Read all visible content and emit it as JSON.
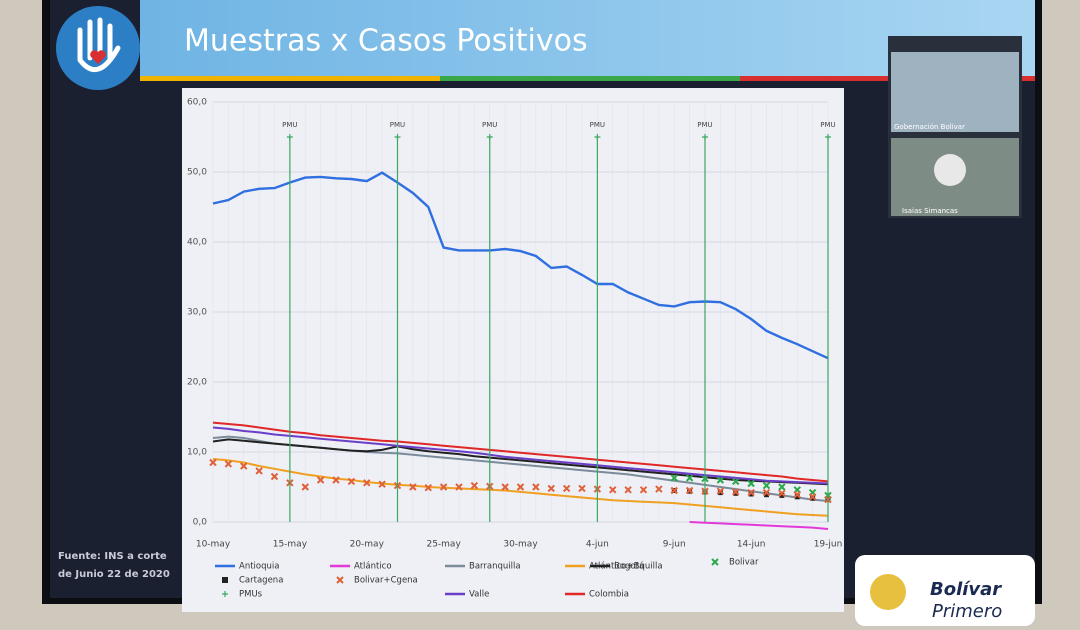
{
  "slide": {
    "title": "Muestras x Casos Positivos",
    "source_lines": [
      "Fuente: INS a corte",
      "de Junio 22 de 2020"
    ],
    "logo_lines": [
      "Bolívar",
      "Primero"
    ]
  },
  "video": {
    "participants": [
      "Gobernación Bolivar",
      "Isaias Simancas"
    ]
  },
  "chart_data": {
    "type": "line",
    "annotation_label": "PMU",
    "categories": [
      "10-may",
      null,
      null,
      null,
      null,
      "15-may",
      null,
      null,
      null,
      null,
      "20-may",
      null,
      null,
      null,
      null,
      "25-may",
      null,
      null,
      null,
      null,
      "30-may",
      null,
      null,
      null,
      null,
      "4-jun",
      null,
      null,
      null,
      null,
      "9-jun",
      null,
      null,
      null,
      null,
      "14-jun",
      null,
      null,
      null,
      null,
      "19-jun"
    ],
    "ylim": [
      0,
      60
    ],
    "yticks": [
      {
        "value": 0,
        "label": "0,0"
      },
      {
        "value": 10,
        "label": "10,0"
      },
      {
        "value": 20,
        "label": "20,0"
      },
      {
        "value": 30,
        "label": "30,0"
      },
      {
        "value": 40,
        "label": "40,0"
      },
      {
        "value": 50,
        "label": "50,0"
      },
      {
        "value": 60,
        "label": "60,0"
      }
    ],
    "grid": true,
    "series": [
      {
        "name": "Antioquia",
        "color": "#2f6fe0",
        "marker": "line",
        "values": [
          45.5,
          46,
          47.2,
          47.6,
          47.7,
          48.5,
          49.2,
          49.3,
          49.1,
          49,
          48.7,
          49.9,
          48.5,
          47,
          45,
          39.2,
          38.8,
          38.8,
          38.8,
          39,
          38.7,
          38,
          36.3,
          36.5,
          35.3,
          34,
          34,
          32.8,
          31.9,
          31,
          30.8,
          31.4,
          31.5,
          31.4,
          30.4,
          29,
          27.3,
          26.3,
          25.4,
          24.4,
          23.4
        ]
      },
      {
        "name": "Atlántico",
        "color": "#e23ad8",
        "marker": "line",
        "values": [
          null,
          null,
          null,
          null,
          null,
          null,
          null,
          null,
          null,
          null,
          null,
          null,
          null,
          null,
          null,
          null,
          null,
          null,
          null,
          null,
          null,
          null,
          null,
          null,
          null,
          null,
          null,
          null,
          null,
          null,
          null,
          0,
          -0.1,
          -0.2,
          -0.3,
          -0.4,
          -0.5,
          -0.6,
          -0.7,
          -0.8,
          -1
        ]
      },
      {
        "name": "Barranquilla",
        "color": "#7b8b9a",
        "marker": "line",
        "values": [
          12,
          12.2,
          12,
          11.6,
          11.2,
          11,
          10.8,
          10.6,
          10.4,
          10.2,
          10,
          9.9,
          9.8,
          9.6,
          9.4,
          9.2,
          9,
          8.8,
          8.6,
          8.4,
          8.2,
          8,
          7.8,
          7.6,
          7.4,
          7.2,
          7,
          6.8,
          6.5,
          6.2,
          5.9,
          5.6,
          5.3,
          5,
          4.7,
          4.4,
          4.1,
          3.8,
          3.5,
          3.2,
          3
        ]
      },
      {
        "name": "Atlántico+Bquilla",
        "color": "#f0a020",
        "marker": "line",
        "values": [
          9,
          8.8,
          8.5,
          8,
          7.6,
          7.2,
          6.8,
          6.5,
          6.2,
          6,
          5.7,
          5.5,
          5.3,
          5.2,
          5,
          4.9,
          4.8,
          4.7,
          4.6,
          4.5,
          4.3,
          4.1,
          3.9,
          3.7,
          3.5,
          3.3,
          3.1,
          3,
          2.9,
          2.8,
          2.7,
          2.5,
          2.3,
          2.1,
          1.9,
          1.7,
          1.5,
          1.3,
          1.1,
          1,
          0.9
        ]
      },
      {
        "name": "Bogotá",
        "color": "#222222",
        "marker": "line",
        "values": [
          11.5,
          11.8,
          11.6,
          11.4,
          11.2,
          11,
          10.8,
          10.6,
          10.4,
          10.2,
          10.1,
          10.3,
          10.8,
          10.4,
          10.1,
          9.9,
          9.7,
          9.4,
          9.2,
          9,
          8.8,
          8.6,
          8.4,
          8.2,
          8,
          7.8,
          7.6,
          7.4,
          7.2,
          7,
          6.8,
          6.6,
          6.4,
          6.2,
          6,
          5.9,
          5.8,
          5.7,
          5.6,
          5.5,
          5.4
        ]
      },
      {
        "name": "Bolivar",
        "color": "#2aa84a",
        "marker": "x",
        "values": [
          null,
          null,
          null,
          null,
          null,
          null,
          null,
          null,
          null,
          null,
          null,
          null,
          null,
          null,
          null,
          null,
          null,
          null,
          null,
          null,
          null,
          null,
          null,
          null,
          null,
          null,
          null,
          null,
          null,
          null,
          6.3,
          6.3,
          6.2,
          6,
          5.8,
          5.5,
          5.2,
          5,
          4.6,
          4.2,
          3.8
        ]
      },
      {
        "name": "Cartagena",
        "color": "#222222",
        "marker": "square",
        "values": [
          null,
          null,
          null,
          null,
          null,
          null,
          null,
          null,
          null,
          null,
          null,
          null,
          null,
          null,
          null,
          null,
          null,
          null,
          null,
          null,
          null,
          null,
          null,
          null,
          null,
          null,
          null,
          null,
          null,
          null,
          4.5,
          4.4,
          4.3,
          4.2,
          4.1,
          4,
          3.9,
          3.8,
          3.6,
          3.4,
          3.2
        ]
      },
      {
        "name": "Bolivar+Cgena",
        "color": "#e0603a",
        "marker": "x",
        "values": [
          8.5,
          8.3,
          8,
          7.3,
          6.5,
          5.6,
          5,
          6,
          6,
          5.8,
          5.6,
          5.4,
          5.2,
          5,
          4.9,
          5,
          5,
          5.2,
          5.1,
          5,
          5,
          5,
          4.8,
          4.8,
          4.8,
          4.7,
          4.6,
          4.6,
          4.6,
          4.7,
          4.5,
          4.5,
          4.4,
          4.4,
          4.3,
          4.2,
          4.2,
          4.1,
          3.9,
          3.6,
          3.2
        ]
      },
      {
        "name": "Valle",
        "color": "#6a3ec8",
        "marker": "line",
        "values": [
          13.5,
          13.3,
          13,
          12.8,
          12.5,
          12.3,
          12.1,
          11.9,
          11.7,
          11.5,
          11.3,
          11.1,
          10.9,
          10.7,
          10.5,
          10.3,
          10.1,
          9.9,
          9.6,
          9.3,
          9.1,
          8.9,
          8.7,
          8.5,
          8.3,
          8.1,
          7.9,
          7.7,
          7.5,
          7.3,
          7.1,
          6.9,
          6.7,
          6.5,
          6.3,
          6.1,
          5.9,
          5.8,
          5.7,
          5.6,
          5.5
        ]
      },
      {
        "name": "Colombia",
        "color": "#e02828",
        "marker": "line",
        "values": [
          14.2,
          14,
          13.8,
          13.5,
          13.2,
          12.9,
          12.7,
          12.4,
          12.2,
          12,
          11.8,
          11.6,
          11.5,
          11.3,
          11.1,
          10.9,
          10.7,
          10.5,
          10.3,
          10.1,
          9.9,
          9.7,
          9.5,
          9.3,
          9.1,
          8.9,
          8.7,
          8.5,
          8.3,
          8.1,
          7.9,
          7.7,
          7.5,
          7.3,
          7.1,
          6.9,
          6.7,
          6.5,
          6.2,
          6,
          5.8
        ]
      },
      {
        "name": "PMUs",
        "color": "#3aa860",
        "marker": "pmu",
        "values": [
          null,
          null,
          null,
          null,
          null,
          55,
          null,
          null,
          null,
          null,
          null,
          null,
          55,
          null,
          null,
          null,
          null,
          null,
          55,
          null,
          null,
          null,
          null,
          null,
          null,
          55,
          null,
          null,
          null,
          null,
          null,
          null,
          55,
          null,
          null,
          null,
          null,
          null,
          null,
          null,
          55
        ]
      }
    ]
  }
}
